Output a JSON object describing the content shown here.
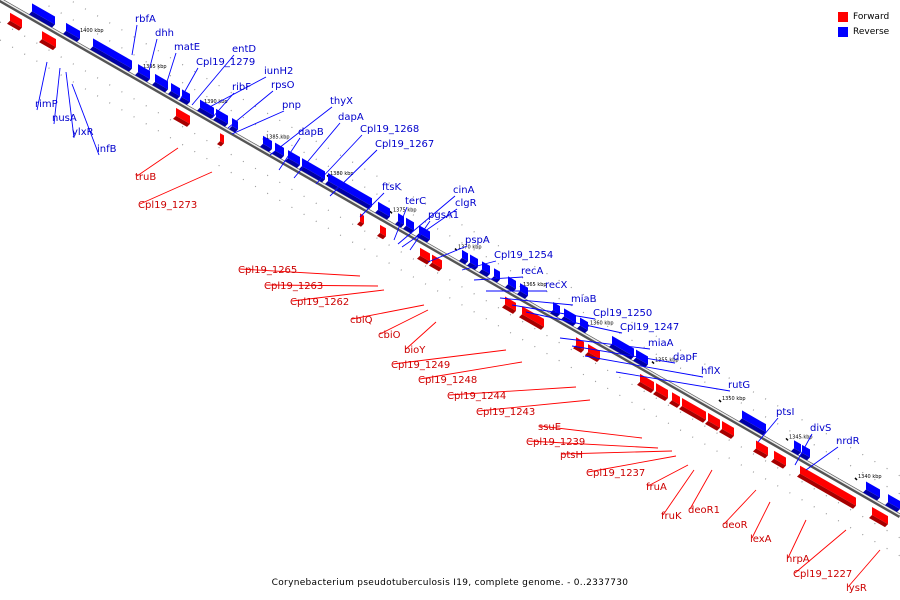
{
  "legend": {
    "items": [
      {
        "label": "Forward",
        "color": "#ff0000"
      },
      {
        "label": "Reverse",
        "color": "#0000ff"
      }
    ]
  },
  "colors": {
    "forward": "#ff0000",
    "forward_shade": "#a60000",
    "reverse": "#0000ff",
    "reverse_shade": "#0000a6",
    "forward_text": "#cc0000",
    "reverse_text": "#0000cc"
  },
  "caption": "Corynebacterium pseudotuberculosis I19, complete genome. - 0..2337730",
  "scale_ticks": [
    "1400 kbp",
    "1395 kbp",
    "1390 kbp",
    "1385 kbp",
    "1380 kbp",
    "1375 kbp",
    "1370 kbp",
    "1365 kbp",
    "1360 kbp",
    "1355 kbp",
    "1350 kbp",
    "1345 kbp",
    "1340 kbp"
  ],
  "reverse_genes": [
    "rbfA",
    "dhh",
    "matE",
    "Cpl19_1279",
    "entD",
    "iunH2",
    "ribF",
    "rpsO",
    "pnp",
    "thyX",
    "dapB",
    "dapA",
    "Cpl19_1268",
    "Cpl19_1267",
    "ftsK",
    "terC",
    "cinA",
    "clgR",
    "pgsA1",
    "pspA",
    "Cpl19_1254",
    "recA",
    "recX",
    "miaB",
    "Cpl19_1250",
    "Cpl19_1247",
    "miaA",
    "dapF",
    "hflX",
    "rutG",
    "ptsI",
    "divS",
    "nrdR",
    "rimP",
    "nusA",
    "ylxR",
    "infB"
  ],
  "forward_genes": [
    "truB",
    "Cpl19_1273",
    "Cpl19_1265",
    "Cpl19_1263",
    "Cpl19_1262",
    "cbiQ",
    "cbiO",
    "bioY",
    "Cpl19_1249",
    "Cpl19_1248",
    "Cpl19_1244",
    "Cpl19_1243",
    "ssuE",
    "Cpl19_1239",
    "ptsH",
    "Cpl19_1237",
    "fruA",
    "fruK",
    "deoR1",
    "deoR",
    "lexA",
    "hrpA",
    "Cpl19_1227",
    "lysR"
  ]
}
